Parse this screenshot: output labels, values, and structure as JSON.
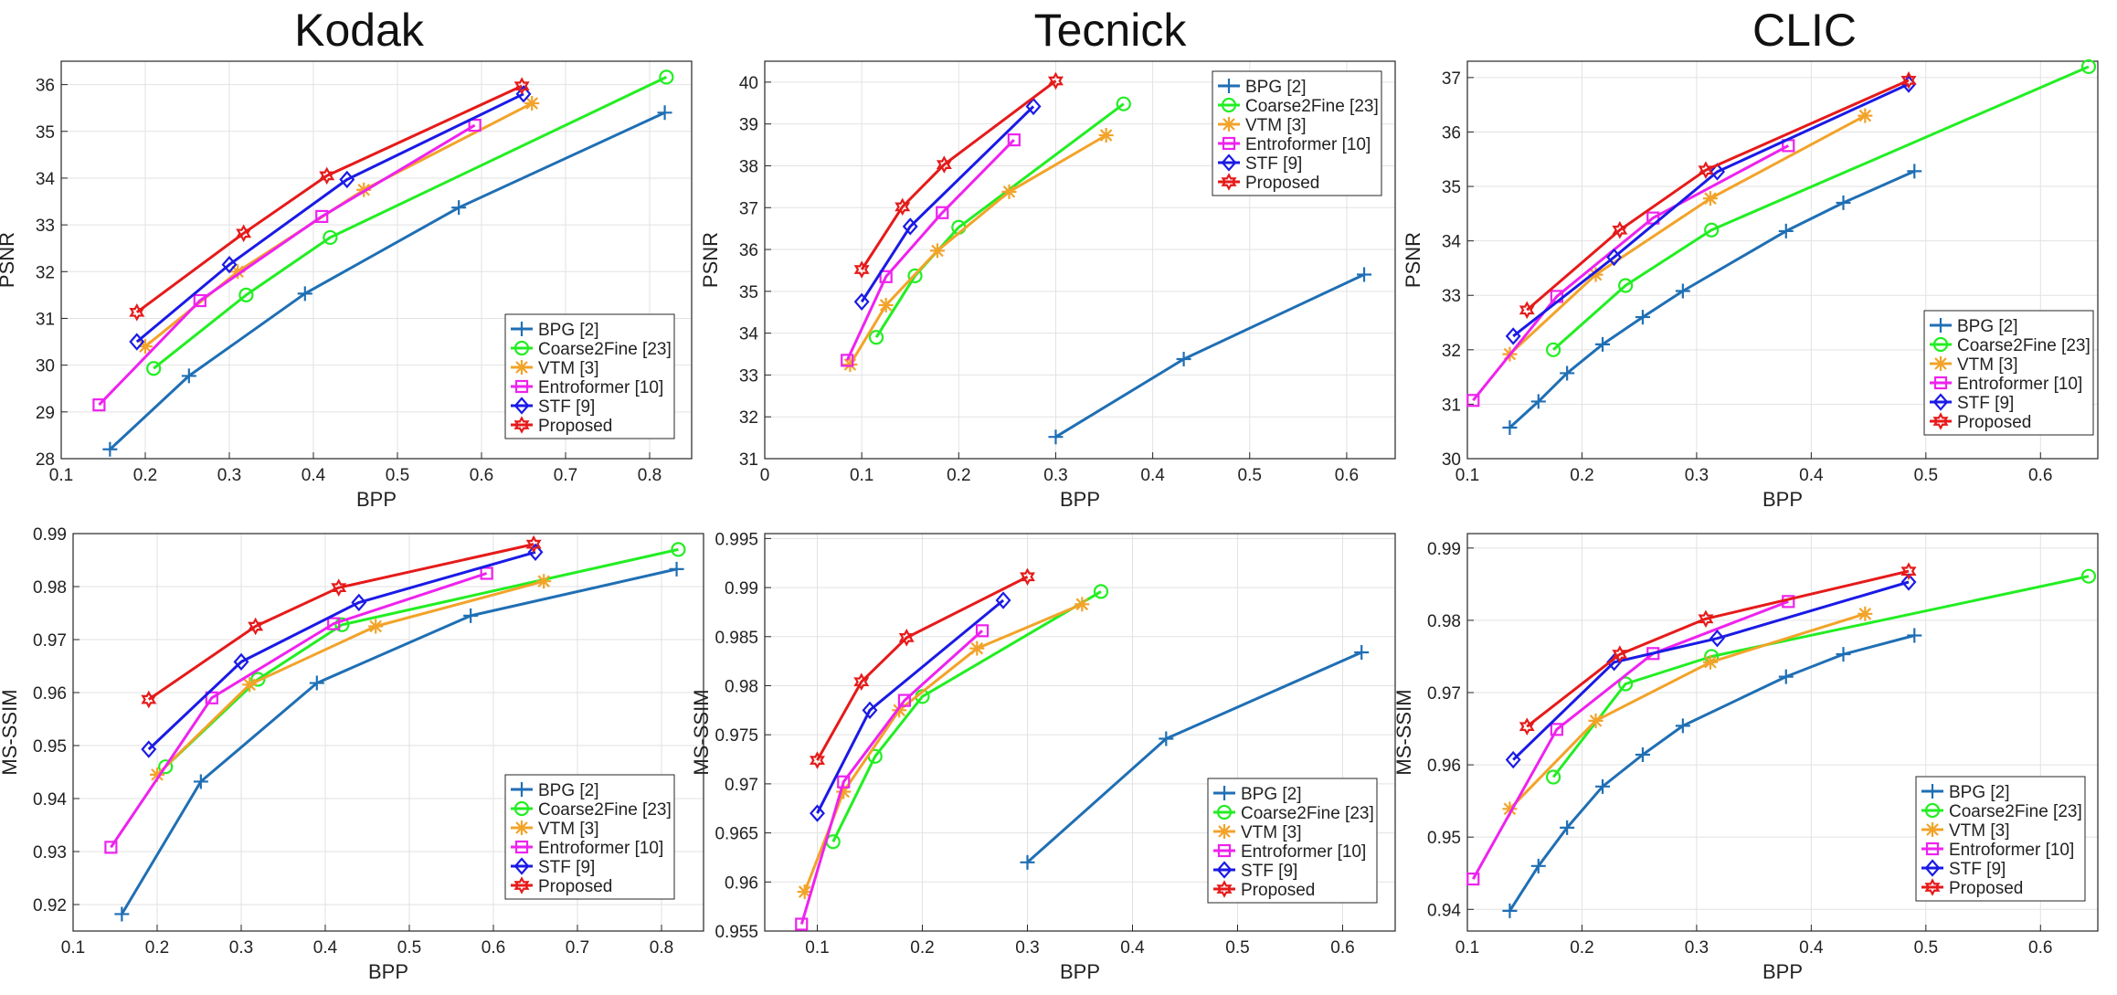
{
  "columns": [
    "Kodak",
    "Tecnick",
    "CLIC"
  ],
  "series_styles": [
    {
      "name": "BPG [2]",
      "color": "#1f6fb4",
      "marker": "plus"
    },
    {
      "name": "Coarse2Fine [23]",
      "color": "#22ee22",
      "marker": "circle"
    },
    {
      "name": "VTM [3]",
      "color": "#f2a329",
      "marker": "star"
    },
    {
      "name": "Entroformer [10]",
      "color": "#ee22ee",
      "marker": "square"
    },
    {
      "name": "STF [9]",
      "color": "#1a1ae6",
      "marker": "diamond"
    },
    {
      "name": "Proposed",
      "color": "#e61a1a",
      "marker": "hexagram"
    }
  ],
  "chart_data": [
    {
      "type": "line",
      "title": "Kodak",
      "xlabel": "BPP",
      "ylabel": "PSNR",
      "xlim": [
        0.1,
        0.85
      ],
      "ylim": [
        28,
        36.5
      ],
      "xticks": [
        0.1,
        0.2,
        0.3,
        0.4,
        0.5,
        0.6,
        0.7,
        0.8
      ],
      "xtick_labels": [
        "0.1",
        "0.2",
        "0.3",
        "0.4",
        "0.5",
        "0.6",
        "0.7",
        "0.8"
      ],
      "yticks": [
        28,
        29,
        30,
        31,
        32,
        33,
        34,
        35,
        36
      ],
      "ytick_labels": [
        "28",
        "29",
        "30",
        "31",
        "32",
        "33",
        "34",
        "35",
        "36"
      ],
      "grid": true,
      "legend": "bottom-right",
      "series": [
        {
          "name": "BPG [2]",
          "x": [
            0.158,
            0.252,
            0.39,
            0.573,
            0.818
          ],
          "y": [
            28.2,
            29.77,
            31.53,
            33.37,
            35.4
          ]
        },
        {
          "name": "Coarse2Fine [23]",
          "x": [
            0.21,
            0.32,
            0.42,
            0.82
          ],
          "y": [
            29.93,
            31.5,
            32.73,
            36.16
          ]
        },
        {
          "name": "VTM [3]",
          "x": [
            0.2,
            0.31,
            0.46,
            0.66
          ],
          "y": [
            30.4,
            32.0,
            33.75,
            35.6
          ]
        },
        {
          "name": "Entroformer [10]",
          "x": [
            0.145,
            0.265,
            0.41,
            0.592
          ],
          "y": [
            29.15,
            31.38,
            33.18,
            35.13
          ]
        },
        {
          "name": "STF [9]",
          "x": [
            0.19,
            0.3,
            0.44,
            0.65
          ],
          "y": [
            30.5,
            32.15,
            33.97,
            35.8
          ]
        },
        {
          "name": "Proposed",
          "x": [
            0.19,
            0.317,
            0.416,
            0.648
          ],
          "y": [
            31.13,
            32.82,
            34.05,
            35.97
          ]
        }
      ]
    },
    {
      "type": "line",
      "title": "Tecnick",
      "xlabel": "BPP",
      "ylabel": "PSNR",
      "xlim": [
        0,
        0.65
      ],
      "ylim": [
        31,
        40.5
      ],
      "xticks": [
        0,
        0.1,
        0.2,
        0.3,
        0.4,
        0.5,
        0.6
      ],
      "xtick_labels": [
        "0",
        "0.1",
        "0.2",
        "0.3",
        "0.4",
        "0.5",
        "0.6"
      ],
      "yticks": [
        31,
        32,
        33,
        34,
        35,
        36,
        37,
        38,
        39,
        40
      ],
      "ytick_labels": [
        "31",
        "32",
        "33",
        "34",
        "35",
        "36",
        "37",
        "38",
        "39",
        "40"
      ],
      "grid": true,
      "legend": "top-right",
      "series": [
        {
          "name": "BPG [2]",
          "x": [
            0.3,
            0.432,
            0.618
          ],
          "y": [
            31.52,
            33.38,
            35.4
          ]
        },
        {
          "name": "Coarse2Fine [23]",
          "x": [
            0.115,
            0.155,
            0.2,
            0.37
          ],
          "y": [
            33.9,
            35.37,
            36.53,
            39.48
          ]
        },
        {
          "name": "VTM [3]",
          "x": [
            0.088,
            0.125,
            0.178,
            0.252,
            0.352
          ],
          "y": [
            33.25,
            34.67,
            35.97,
            37.38,
            38.73
          ]
        },
        {
          "name": "Entroformer [10]",
          "x": [
            0.085,
            0.125,
            0.183,
            0.257
          ],
          "y": [
            33.35,
            35.35,
            36.88,
            38.62
          ]
        },
        {
          "name": "STF [9]",
          "x": [
            0.1,
            0.15,
            0.277
          ],
          "y": [
            34.75,
            36.55,
            39.42
          ]
        },
        {
          "name": "Proposed",
          "x": [
            0.1,
            0.142,
            0.185,
            0.3
          ],
          "y": [
            35.52,
            37.02,
            38.03,
            40.03
          ]
        }
      ]
    },
    {
      "type": "line",
      "title": "CLIC",
      "xlabel": "BPP",
      "ylabel": "PSNR",
      "xlim": [
        0.1,
        0.65
      ],
      "ylim": [
        30,
        37.3
      ],
      "xticks": [
        0.1,
        0.2,
        0.3,
        0.4,
        0.5,
        0.6
      ],
      "xtick_labels": [
        "0.1",
        "0.2",
        "0.3",
        "0.4",
        "0.5",
        "0.6"
      ],
      "yticks": [
        30,
        31,
        32,
        33,
        34,
        35,
        36,
        37
      ],
      "ytick_labels": [
        "30",
        "31",
        "32",
        "33",
        "34",
        "35",
        "36",
        "37"
      ],
      "grid": true,
      "legend": "bottom-right",
      "series": [
        {
          "name": "BPG [2]",
          "x": [
            0.137,
            0.162,
            0.187,
            0.218,
            0.253,
            0.288,
            0.378,
            0.428,
            0.49
          ],
          "y": [
            30.57,
            31.05,
            31.57,
            32.1,
            32.6,
            33.08,
            34.18,
            34.7,
            35.28
          ]
        },
        {
          "name": "Coarse2Fine [23]",
          "x": [
            0.175,
            0.238,
            0.313,
            0.642
          ],
          "y": [
            32.0,
            33.18,
            34.2,
            37.2
          ]
        },
        {
          "name": "VTM [3]",
          "x": [
            0.137,
            0.212,
            0.312,
            0.447
          ],
          "y": [
            31.92,
            33.38,
            34.78,
            36.3
          ]
        },
        {
          "name": "Entroformer [10]",
          "x": [
            0.105,
            0.178,
            0.262,
            0.38
          ],
          "y": [
            31.07,
            32.98,
            34.42,
            35.75
          ]
        },
        {
          "name": "STF [9]",
          "x": [
            0.14,
            0.228,
            0.318,
            0.485
          ],
          "y": [
            32.25,
            33.7,
            35.27,
            36.88
          ]
        },
        {
          "name": "Proposed",
          "x": [
            0.152,
            0.233,
            0.308,
            0.485
          ],
          "y": [
            32.73,
            34.2,
            35.3,
            36.95
          ]
        }
      ]
    },
    {
      "type": "line",
      "title": "",
      "xlabel": "BPP",
      "ylabel": "MS-SSIM",
      "xlim": [
        0.1,
        0.85
      ],
      "ylim": [
        0.915,
        0.99
      ],
      "xticks": [
        0.1,
        0.2,
        0.3,
        0.4,
        0.5,
        0.6,
        0.7,
        0.8
      ],
      "xtick_labels": [
        "0.1",
        "0.2",
        "0.3",
        "0.4",
        "0.5",
        "0.6",
        "0.7",
        "0.8"
      ],
      "yticks": [
        0.92,
        0.93,
        0.94,
        0.95,
        0.96,
        0.97,
        0.98,
        0.99
      ],
      "ytick_labels": [
        "0.92",
        "0.93",
        "0.94",
        "0.95",
        "0.96",
        "0.97",
        "0.98",
        "0.99"
      ],
      "grid": true,
      "legend": "bottom-right",
      "series": [
        {
          "name": "BPG [2]",
          "x": [
            0.158,
            0.252,
            0.39,
            0.573,
            0.818
          ],
          "y": [
            0.9182,
            0.9432,
            0.9618,
            0.9745,
            0.9833
          ]
        },
        {
          "name": "Coarse2Fine [23]",
          "x": [
            0.21,
            0.32,
            0.42,
            0.82
          ],
          "y": [
            0.946,
            0.9625,
            0.9728,
            0.987
          ]
        },
        {
          "name": "VTM [3]",
          "x": [
            0.2,
            0.31,
            0.46,
            0.66
          ],
          "y": [
            0.9445,
            0.9615,
            0.9725,
            0.981
          ]
        },
        {
          "name": "Entroformer [10]",
          "x": [
            0.145,
            0.265,
            0.41,
            0.592
          ],
          "y": [
            0.9308,
            0.959,
            0.973,
            0.9825
          ]
        },
        {
          "name": "STF [9]",
          "x": [
            0.19,
            0.3,
            0.44,
            0.65
          ],
          "y": [
            0.9493,
            0.9658,
            0.977,
            0.9865
          ]
        },
        {
          "name": "Proposed",
          "x": [
            0.19,
            0.317,
            0.416,
            0.648
          ],
          "y": [
            0.9587,
            0.9725,
            0.9798,
            0.988
          ]
        }
      ]
    },
    {
      "type": "line",
      "title": "",
      "xlabel": "BPP",
      "ylabel": "MS-SSIM",
      "xlim": [
        0.05,
        0.65
      ],
      "ylim": [
        0.955,
        0.9955
      ],
      "xticks": [
        0.1,
        0.2,
        0.3,
        0.4,
        0.5,
        0.6
      ],
      "xtick_labels": [
        "0.1",
        "0.2",
        "0.3",
        "0.4",
        "0.5",
        "0.6"
      ],
      "yticks": [
        0.955,
        0.96,
        0.965,
        0.97,
        0.975,
        0.98,
        0.985,
        0.99,
        0.995
      ],
      "ytick_labels": [
        "0.955",
        "0.96",
        "0.965",
        "0.97",
        "0.975",
        "0.98",
        "0.985",
        "0.99",
        "0.995"
      ],
      "grid": true,
      "legend": "bottom-right",
      "series": [
        {
          "name": "BPG [2]",
          "x": [
            0.3,
            0.432,
            0.618
          ],
          "y": [
            0.962,
            0.9746,
            0.9834
          ]
        },
        {
          "name": "Coarse2Fine [23]",
          "x": [
            0.115,
            0.155,
            0.2,
            0.37
          ],
          "y": [
            0.9641,
            0.9728,
            0.9789,
            0.9896
          ]
        },
        {
          "name": "VTM [3]",
          "x": [
            0.088,
            0.125,
            0.178,
            0.252,
            0.352
          ],
          "y": [
            0.959,
            0.9692,
            0.9775,
            0.9838,
            0.9883
          ]
        },
        {
          "name": "Entroformer [10]",
          "x": [
            0.085,
            0.125,
            0.183,
            0.257
          ],
          "y": [
            0.9557,
            0.9702,
            0.9785,
            0.9856
          ]
        },
        {
          "name": "STF [9]",
          "x": [
            0.1,
            0.15,
            0.277
          ],
          "y": [
            0.967,
            0.9775,
            0.9887
          ]
        },
        {
          "name": "Proposed",
          "x": [
            0.1,
            0.142,
            0.185,
            0.3
          ],
          "y": [
            0.9724,
            0.9804,
            0.9849,
            0.9911
          ]
        }
      ]
    },
    {
      "type": "line",
      "title": "",
      "xlabel": "BPP",
      "ylabel": "MS-SSIM",
      "xlim": [
        0.1,
        0.65
      ],
      "ylim": [
        0.937,
        0.992
      ],
      "xticks": [
        0.1,
        0.2,
        0.3,
        0.4,
        0.5,
        0.6
      ],
      "xtick_labels": [
        "0.1",
        "0.2",
        "0.3",
        "0.4",
        "0.5",
        "0.6"
      ],
      "yticks": [
        0.94,
        0.95,
        0.96,
        0.97,
        0.98,
        0.99
      ],
      "ytick_labels": [
        "0.94",
        "0.95",
        "0.96",
        "0.97",
        "0.98",
        "0.99"
      ],
      "grid": true,
      "legend": "bottom-right",
      "series": [
        {
          "name": "BPG [2]",
          "x": [
            0.137,
            0.162,
            0.187,
            0.218,
            0.253,
            0.288,
            0.378,
            0.428,
            0.49
          ],
          "y": [
            0.9398,
            0.946,
            0.9513,
            0.957,
            0.9614,
            0.9654,
            0.9722,
            0.9753,
            0.9779
          ]
        },
        {
          "name": "Coarse2Fine [23]",
          "x": [
            0.175,
            0.238,
            0.313,
            0.642
          ],
          "y": [
            0.9583,
            0.9712,
            0.975,
            0.9861
          ]
        },
        {
          "name": "VTM [3]",
          "x": [
            0.137,
            0.212,
            0.312,
            0.447
          ],
          "y": [
            0.9539,
            0.9661,
            0.9742,
            0.9809
          ]
        },
        {
          "name": "Entroformer [10]",
          "x": [
            0.105,
            0.178,
            0.262,
            0.38
          ],
          "y": [
            0.9442,
            0.9649,
            0.9754,
            0.9826
          ]
        },
        {
          "name": "STF [9]",
          "x": [
            0.14,
            0.228,
            0.318,
            0.485
          ],
          "y": [
            0.9607,
            0.9742,
            0.9775,
            0.9853
          ]
        },
        {
          "name": "Proposed",
          "x": [
            0.152,
            0.233,
            0.308,
            0.485
          ],
          "y": [
            0.9653,
            0.9753,
            0.9802,
            0.9868
          ]
        }
      ]
    }
  ]
}
